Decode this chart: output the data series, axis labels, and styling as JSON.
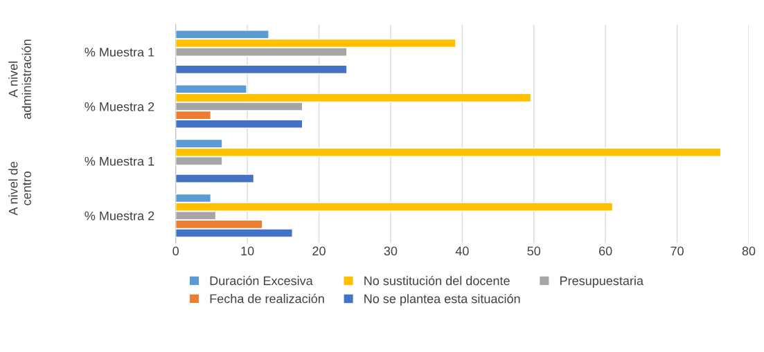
{
  "chart_data": {
    "type": "bar",
    "orientation": "horizontal",
    "categories": [
      "% Muestra 1",
      "% Muestra 2",
      "% Muestra 1",
      "% Muestra 2"
    ],
    "annotations": [
      "A nivel administración",
      "A nivel de centro"
    ],
    "series": [
      {
        "name": "Duración Excesiva",
        "color": "#5b9bd5",
        "values": [
          13.0,
          9.9,
          6.5,
          4.9
        ]
      },
      {
        "name": "No sustitución del docente",
        "color": "#ffc000",
        "values": [
          39.1,
          49.6,
          76.1,
          61.0
        ]
      },
      {
        "name": "Presupuestaria",
        "color": "#a5a5a5",
        "values": [
          23.9,
          17.7,
          6.5,
          5.6
        ]
      },
      {
        "name": "Fecha de realización",
        "color": "#ed7d31",
        "values": [
          null,
          4.9,
          null,
          12.1
        ]
      },
      {
        "name": "No se plantea esta situación",
        "color": "#4472c4",
        "values": [
          23.9,
          17.7,
          10.9,
          16.3
        ]
      }
    ],
    "xlim": [
      0,
      80
    ],
    "xticks": [
      0,
      10,
      20,
      30,
      40,
      50,
      60,
      70,
      80
    ],
    "grid": "x",
    "legend": "bottom"
  }
}
